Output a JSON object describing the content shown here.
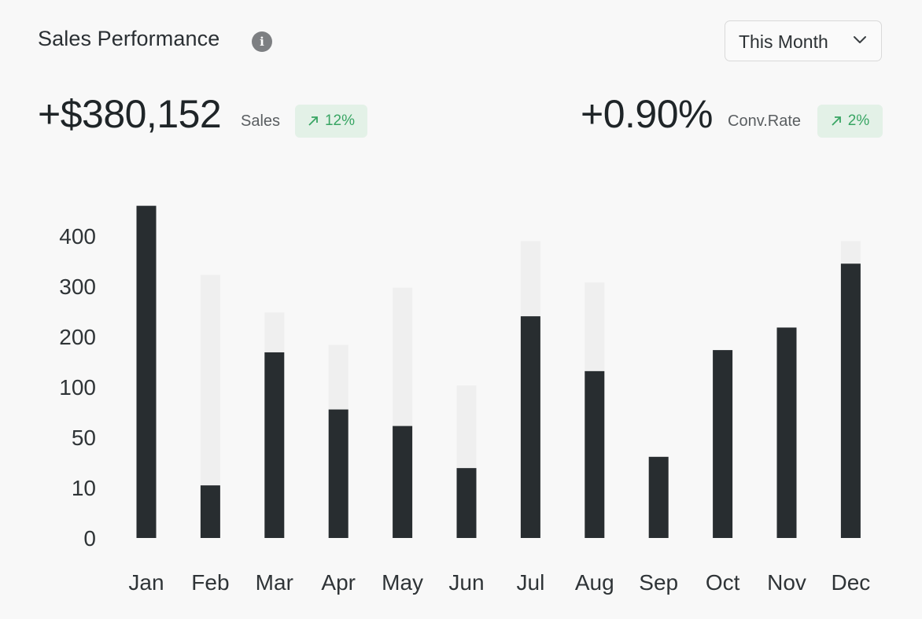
{
  "header": {
    "title": "Sales Performance",
    "info_icon": "info-icon",
    "period": "This Month",
    "period_icon": "chevron-down-icon"
  },
  "metrics": {
    "sales": {
      "value": "+$380,152",
      "label": "Sales",
      "delta": "12%",
      "delta_icon": "arrow-up-right-icon"
    },
    "conversion": {
      "value": "+0.90%",
      "label": "Conv.Rate",
      "delta": "2%",
      "delta_icon": "arrow-up-right-icon"
    }
  },
  "colors": {
    "bar": "#282d30",
    "bar_background": "#efefef",
    "badge_bg": "#e3f1e7",
    "badge_text": "#38a563"
  },
  "chart_data": {
    "type": "bar",
    "categories": [
      "Jan",
      "Feb",
      "Mar",
      "Apr",
      "May",
      "Jun",
      "Jul",
      "Aug",
      "Sep",
      "Oct",
      "Nov",
      "Dec"
    ],
    "y_ticks": [
      "0",
      "10",
      "50",
      "100",
      "200",
      "300",
      "400"
    ],
    "series": [
      {
        "values": [
          442,
          70,
          247,
          171,
          149,
          93,
          295,
          222,
          108,
          250,
          280,
          365
        ]
      },
      {
        "values": [
          442,
          350,
          300,
          257,
          333,
          203,
          395,
          340,
          108,
          250,
          280,
          395
        ]
      }
    ],
    "ylim": [
      0,
      450
    ],
    "grid": false,
    "legend": "none"
  }
}
